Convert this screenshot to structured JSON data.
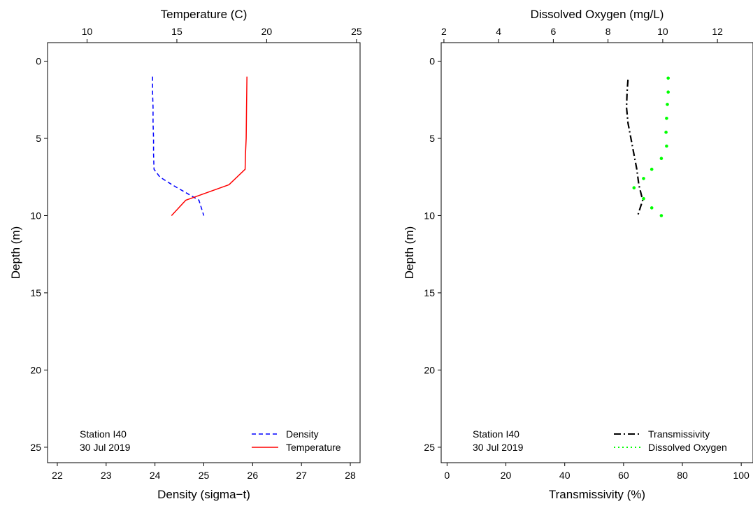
{
  "chart_data": [
    {
      "type": "line",
      "y_axis": {
        "label": "Depth (m)",
        "ylim": [
          26,
          -1.2
        ],
        "ticks": [
          0,
          5,
          10,
          15,
          20,
          25
        ],
        "reversed": true
      },
      "bottom_axis": {
        "label": "Density (sigma−t)",
        "xlim": [
          21.8,
          28.2
        ],
        "ticks": [
          22,
          23,
          24,
          25,
          26,
          27,
          28
        ]
      },
      "top_axis": {
        "label": "Temperature (C)",
        "xlim": [
          7.8,
          25.2
        ],
        "ticks": [
          10,
          15,
          20,
          25
        ]
      },
      "annotation": [
        "Station I40",
        "30 Jul 2019"
      ],
      "legend": {
        "position": "bottom-right",
        "entries": [
          "Density",
          "Temperature"
        ]
      },
      "series": [
        {
          "name": "Density",
          "axis": "bottom",
          "color": "#0000ff",
          "dash": "6,4",
          "points": [
            [
              23.95,
              1
            ],
            [
              23.95,
              2
            ],
            [
              23.96,
              3
            ],
            [
              23.96,
              4
            ],
            [
              23.97,
              5
            ],
            [
              23.97,
              6
            ],
            [
              23.98,
              7
            ],
            [
              24.1,
              7.5
            ],
            [
              24.35,
              8
            ],
            [
              24.9,
              9
            ],
            [
              25.0,
              10
            ]
          ]
        },
        {
          "name": "Temperature",
          "axis": "top",
          "color": "#ff0000",
          "dash": "",
          "points": [
            [
              18.9,
              1
            ],
            [
              18.88,
              3
            ],
            [
              18.86,
              5
            ],
            [
              18.82,
              6
            ],
            [
              18.8,
              7
            ],
            [
              17.9,
              8
            ],
            [
              15.5,
              9
            ],
            [
              14.7,
              10
            ]
          ]
        }
      ]
    },
    {
      "type": "line",
      "y_axis": {
        "label": "Depth (m)",
        "ylim": [
          26,
          -1.2
        ],
        "ticks": [
          0,
          5,
          10,
          15,
          20,
          25
        ],
        "reversed": true
      },
      "bottom_axis": {
        "label": "Transmissivity (%)",
        "xlim": [
          -2,
          104
        ],
        "ticks": [
          0,
          20,
          40,
          60,
          80,
          100
        ]
      },
      "top_axis": {
        "label": "Dissolved Oxygen (mg/L)",
        "xlim": [
          1.9,
          13.3
        ],
        "ticks": [
          2,
          4,
          6,
          8,
          10,
          12
        ]
      },
      "annotation": [
        "Station I40",
        "30 Jul 2019"
      ],
      "legend": {
        "position": "bottom-right",
        "entries": [
          "Transmissivity",
          "Dissolved Oxygen"
        ]
      },
      "series": [
        {
          "name": "Transmissivity",
          "axis": "bottom",
          "color": "#000000",
          "dash": "10,4,2,4",
          "points": [
            [
              61.5,
              1.2
            ],
            [
              61.2,
              2
            ],
            [
              61.0,
              3
            ],
            [
              61.5,
              4
            ],
            [
              62.5,
              5
            ],
            [
              63.5,
              6
            ],
            [
              64.5,
              7
            ],
            [
              65.2,
              8
            ],
            [
              66.5,
              9
            ],
            [
              64.8,
              10
            ]
          ]
        },
        {
          "name": "Dissolved Oxygen",
          "axis": "top",
          "color": "#00ff00",
          "dash": "2,4",
          "points": [
            [
              10.2,
              1.1
            ],
            [
              10.2,
              2
            ],
            [
              10.17,
              2.8
            ],
            [
              10.14,
              3.7
            ],
            [
              10.12,
              4.6
            ],
            [
              10.14,
              5.5
            ],
            [
              9.95,
              6.3
            ],
            [
              9.6,
              7
            ],
            [
              9.3,
              7.6
            ],
            [
              8.95,
              8.2
            ],
            [
              9.3,
              8.9
            ],
            [
              9.6,
              9.5
            ],
            [
              9.95,
              10
            ]
          ]
        }
      ]
    }
  ]
}
